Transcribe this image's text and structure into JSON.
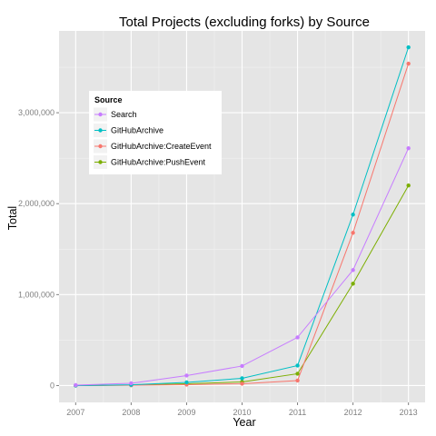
{
  "chart_data": {
    "type": "line",
    "title": "Total Projects (excluding forks) by Source",
    "xlabel": "Year",
    "ylabel": "Total",
    "x": [
      2007,
      2008,
      2009,
      2010,
      2011,
      2012,
      2013
    ],
    "x_tick_labels": [
      "2007",
      "2008",
      "2009",
      "2010",
      "2011",
      "2012",
      "2013"
    ],
    "y_ticks": [
      0,
      1000000,
      2000000,
      3000000
    ],
    "y_tick_labels": [
      "0",
      "1,000,000",
      "2,000,000",
      "3,000,000"
    ],
    "xlim": [
      2006.7,
      2013.3
    ],
    "ylim": [
      -185000,
      3900000
    ],
    "grid": true,
    "legend": {
      "title": "Source",
      "placement": "left-center"
    },
    "series": [
      {
        "name": "Search",
        "color": "#c77cff",
        "values": [
          5000,
          25000,
          110000,
          215000,
          530000,
          1270000,
          2610000
        ]
      },
      {
        "name": "GitHubArchive",
        "color": "#00bfc4",
        "values": [
          0,
          8000,
          35000,
          80000,
          220000,
          1880000,
          3720000
        ]
      },
      {
        "name": "GitHubArchive:CreateEvent",
        "color": "#f8766d",
        "values": [
          0,
          3000,
          10000,
          20000,
          55000,
          1680000,
          3540000
        ]
      },
      {
        "name": "GitHubArchive:PushEvent",
        "color": "#7cae00",
        "values": [
          0,
          5000,
          20000,
          40000,
          130000,
          1120000,
          2200000
        ]
      }
    ]
  }
}
